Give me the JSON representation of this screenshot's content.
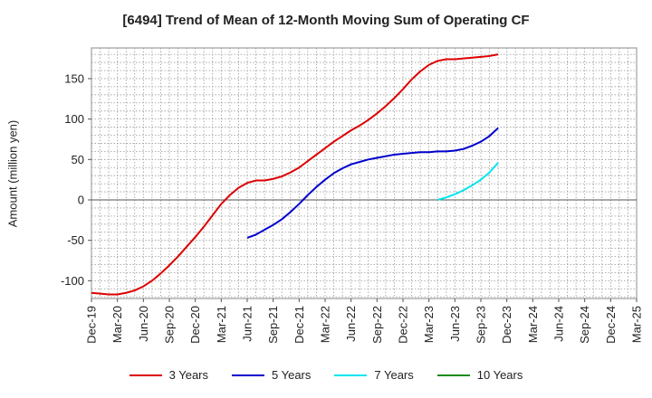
{
  "chart_data": {
    "type": "line",
    "title": "[6494]  Trend of Mean of 12-Month Moving Sum of Operating CF",
    "xlabel": "",
    "ylabel": "Amount (million yen)",
    "ylim": [
      -122,
      188
    ],
    "yticks": [
      -100,
      -50,
      0,
      50,
      100,
      150
    ],
    "xticks": [
      "Dec-19",
      "Mar-20",
      "Jun-20",
      "Sep-20",
      "Dec-20",
      "Mar-21",
      "Jun-21",
      "Sep-21",
      "Dec-21",
      "Mar-22",
      "Jun-22",
      "Sep-22",
      "Dec-22",
      "Mar-23",
      "Jun-23",
      "Sep-23",
      "Dec-23",
      "Mar-24",
      "Jun-24",
      "Sep-24",
      "Dec-24",
      "Mar-25"
    ],
    "x_unit": "months since Dec-19",
    "xlim": [
      0,
      63
    ],
    "grid": true,
    "legend_position": "bottom",
    "series": [
      {
        "name": "3 Years",
        "color": "#dd0000",
        "points": [
          [
            0,
            -115
          ],
          [
            1,
            -116
          ],
          [
            2,
            -117
          ],
          [
            3,
            -117
          ],
          [
            4,
            -115
          ],
          [
            5,
            -112
          ],
          [
            6,
            -107
          ],
          [
            7,
            -100
          ],
          [
            8,
            -91
          ],
          [
            9,
            -81
          ],
          [
            10,
            -70
          ],
          [
            11,
            -58
          ],
          [
            12,
            -46
          ],
          [
            13,
            -33
          ],
          [
            14,
            -19
          ],
          [
            15,
            -5
          ],
          [
            16,
            6
          ],
          [
            17,
            15
          ],
          [
            18,
            21
          ],
          [
            19,
            24
          ],
          [
            20,
            24
          ],
          [
            21,
            26
          ],
          [
            22,
            29
          ],
          [
            23,
            34
          ],
          [
            24,
            40
          ],
          [
            25,
            48
          ],
          [
            26,
            56
          ],
          [
            27,
            64
          ],
          [
            28,
            72
          ],
          [
            29,
            79
          ],
          [
            30,
            86
          ],
          [
            31,
            92
          ],
          [
            32,
            99
          ],
          [
            33,
            107
          ],
          [
            34,
            116
          ],
          [
            35,
            126
          ],
          [
            36,
            137
          ],
          [
            37,
            149
          ],
          [
            38,
            159
          ],
          [
            39,
            167
          ],
          [
            40,
            172
          ],
          [
            41,
            174
          ],
          [
            42,
            174
          ],
          [
            43,
            175
          ],
          [
            44,
            176
          ],
          [
            45,
            177
          ],
          [
            46,
            178
          ],
          [
            47,
            180
          ]
        ]
      },
      {
        "name": "5 Years",
        "color": "#0000cc",
        "points": [
          [
            18,
            -47
          ],
          [
            19,
            -43
          ],
          [
            20,
            -37
          ],
          [
            21,
            -31
          ],
          [
            22,
            -24
          ],
          [
            23,
            -15
          ],
          [
            24,
            -5
          ],
          [
            25,
            6
          ],
          [
            26,
            16
          ],
          [
            27,
            25
          ],
          [
            28,
            33
          ],
          [
            29,
            39
          ],
          [
            30,
            44
          ],
          [
            31,
            47
          ],
          [
            32,
            50
          ],
          [
            33,
            52
          ],
          [
            34,
            54
          ],
          [
            35,
            56
          ],
          [
            36,
            57
          ],
          [
            37,
            58
          ],
          [
            38,
            59
          ],
          [
            39,
            59
          ],
          [
            40,
            60
          ],
          [
            41,
            60
          ],
          [
            42,
            61
          ],
          [
            43,
            63
          ],
          [
            44,
            67
          ],
          [
            45,
            72
          ],
          [
            46,
            79
          ],
          [
            47,
            89
          ]
        ]
      },
      {
        "name": "7 Years",
        "color": "#00e5ee",
        "points": [
          [
            40,
            0
          ],
          [
            41,
            3
          ],
          [
            42,
            7
          ],
          [
            43,
            12
          ],
          [
            44,
            18
          ],
          [
            45,
            25
          ],
          [
            46,
            34
          ],
          [
            47,
            46
          ]
        ]
      },
      {
        "name": "10 Years",
        "color": "#1a8a1a",
        "points": []
      }
    ]
  }
}
